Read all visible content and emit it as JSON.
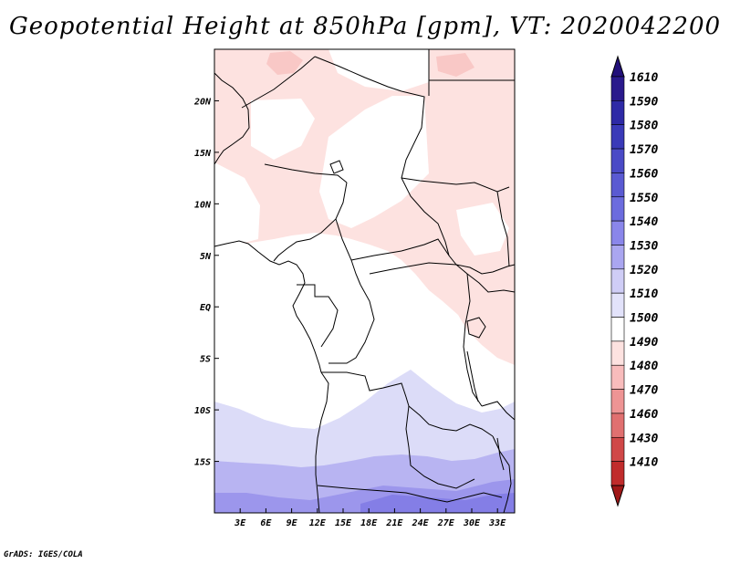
{
  "title": "Geopotential Height at 850hPa [gpm], VT: 2020042200",
  "credit": "GrADS: IGES/COLA",
  "map": {
    "lon_range": [
      0,
      35
    ],
    "lat_range": [
      -20,
      25
    ],
    "lon_ticks": [
      {
        "value": 3,
        "label": "3E"
      },
      {
        "value": 6,
        "label": "6E"
      },
      {
        "value": 9,
        "label": "9E"
      },
      {
        "value": 12,
        "label": "12E"
      },
      {
        "value": 15,
        "label": "15E"
      },
      {
        "value": 18,
        "label": "18E"
      },
      {
        "value": 21,
        "label": "21E"
      },
      {
        "value": 24,
        "label": "24E"
      },
      {
        "value": 27,
        "label": "27E"
      },
      {
        "value": 30,
        "label": "30E"
      },
      {
        "value": 33,
        "label": "33E"
      }
    ],
    "lat_ticks": [
      {
        "value": 20,
        "label": "20N"
      },
      {
        "value": 15,
        "label": "15N"
      },
      {
        "value": 10,
        "label": "10N"
      },
      {
        "value": 5,
        "label": "5N"
      },
      {
        "value": 0,
        "label": "EQ"
      },
      {
        "value": -5,
        "label": "5S"
      },
      {
        "value": -10,
        "label": "10S"
      },
      {
        "value": -15,
        "label": "15S"
      }
    ]
  },
  "colorbar": {
    "levels": [
      {
        "label": "1610",
        "color": "#2a1a8c"
      },
      {
        "label": "1590",
        "color": "#2e2aa6"
      },
      {
        "label": "1580",
        "color": "#3a3ab8"
      },
      {
        "label": "1570",
        "color": "#4a4ac6"
      },
      {
        "label": "1560",
        "color": "#5a5ad2"
      },
      {
        "label": "1550",
        "color": "#6c6cde"
      },
      {
        "label": "1540",
        "color": "#8a86ea"
      },
      {
        "label": "1530",
        "color": "#aaa6f0"
      },
      {
        "label": "1520",
        "color": "#cfcdf6"
      },
      {
        "label": "1510",
        "color": "#e2e2fa"
      },
      {
        "label": "1500",
        "color": "#ffffff"
      },
      {
        "label": "1490",
        "color": "#fde2e0"
      },
      {
        "label": "1480",
        "color": "#f8bcbc"
      },
      {
        "label": "1470",
        "color": "#ee9494"
      },
      {
        "label": "1460",
        "color": "#e07070"
      },
      {
        "label": "1430",
        "color": "#d04848"
      },
      {
        "label": "1410",
        "color": "#c02c2c"
      }
    ],
    "top_triangle_color": "#22107a",
    "bottom_triangle_color": "#a01818"
  }
}
